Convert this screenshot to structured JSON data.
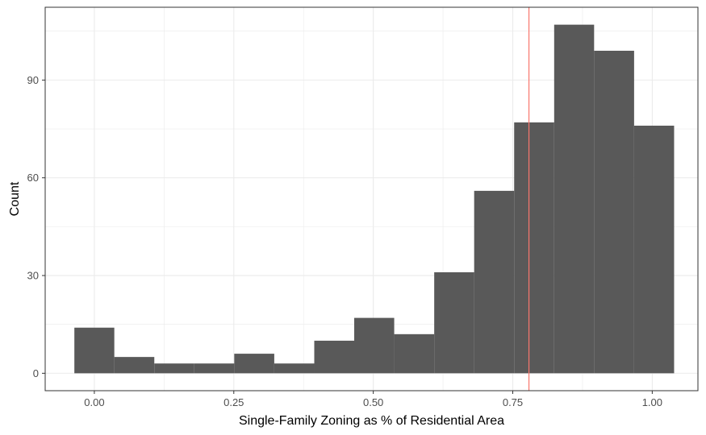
{
  "chart_data": {
    "type": "bar",
    "subtype": "histogram",
    "title": "",
    "xlabel": "Single-Family Zoning as % of Residential Area",
    "ylabel": "Count",
    "xlim": [
      -0.0881,
      1.0819
    ],
    "ylim": [
      -5.35,
      112.35
    ],
    "x_ticks": [
      0.0,
      0.25,
      0.5,
      0.75,
      1.0
    ],
    "x_tick_labels": [
      "0.00",
      "0.25",
      "0.50",
      "0.75",
      "1.00"
    ],
    "y_ticks": [
      0,
      30,
      60,
      90
    ],
    "y_tick_labels": [
      "0",
      "30",
      "60",
      "90"
    ],
    "bin_width": 0.0717,
    "bins": [
      {
        "x0": -0.0358,
        "x1": 0.0358,
        "count": 14
      },
      {
        "x0": 0.0358,
        "x1": 0.1075,
        "count": 5
      },
      {
        "x0": 0.1075,
        "x1": 0.1792,
        "count": 3
      },
      {
        "x0": 0.1792,
        "x1": 0.2508,
        "count": 3
      },
      {
        "x0": 0.2508,
        "x1": 0.3225,
        "count": 6
      },
      {
        "x0": 0.3225,
        "x1": 0.3942,
        "count": 3
      },
      {
        "x0": 0.3942,
        "x1": 0.4658,
        "count": 10
      },
      {
        "x0": 0.4658,
        "x1": 0.5375,
        "count": 17
      },
      {
        "x0": 0.5375,
        "x1": 0.6092,
        "count": 12
      },
      {
        "x0": 0.6092,
        "x1": 0.6808,
        "count": 31
      },
      {
        "x0": 0.6808,
        "x1": 0.7525,
        "count": 56
      },
      {
        "x0": 0.7525,
        "x1": 0.8242,
        "count": 77
      },
      {
        "x0": 0.8242,
        "x1": 0.8958,
        "count": 107
      },
      {
        "x0": 0.8958,
        "x1": 0.9675,
        "count": 99
      },
      {
        "x0": 0.9675,
        "x1": 1.0392,
        "count": 76
      }
    ],
    "reference_line": {
      "x": 0.779,
      "color": "#f8766d"
    },
    "colors": {
      "bar": "#595959",
      "grid": "#ebebeb",
      "border": "#333333"
    },
    "grid": true,
    "legend": "none"
  }
}
